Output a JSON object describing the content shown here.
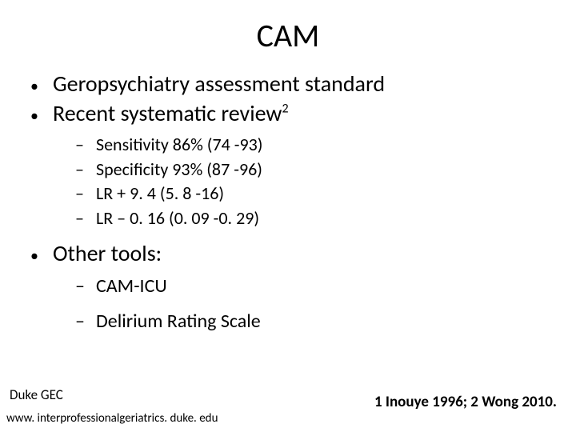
{
  "title": "CAM",
  "bullets": {
    "b1": "Geropsychiatry assessment standard",
    "b2_pre": "Recent systematic review",
    "b2_sup": "2",
    "b3": "Other tools:"
  },
  "review_stats": {
    "s1": "Sensitivity 86% (74 -93)",
    "s2": "Specificity 93% (87 -96)",
    "s3": "LR + 9. 4 (5. 8 -16)",
    "s4": "LR – 0. 16 (0. 09 -0. 29)"
  },
  "other_tools": {
    "t1": "CAM-ICU",
    "t2": "Delirium Rating Scale"
  },
  "footer": {
    "org": "Duke GEC",
    "url": "www. interprofessionalgeriatrics. duke. edu",
    "ref": "1 Inouye 1996; 2 Wong 2010."
  },
  "style": {
    "title_fontsize": 40,
    "body_fontsize": 28,
    "sub_fontsize": 22,
    "bg": "#ffffff",
    "text": "#000000"
  }
}
